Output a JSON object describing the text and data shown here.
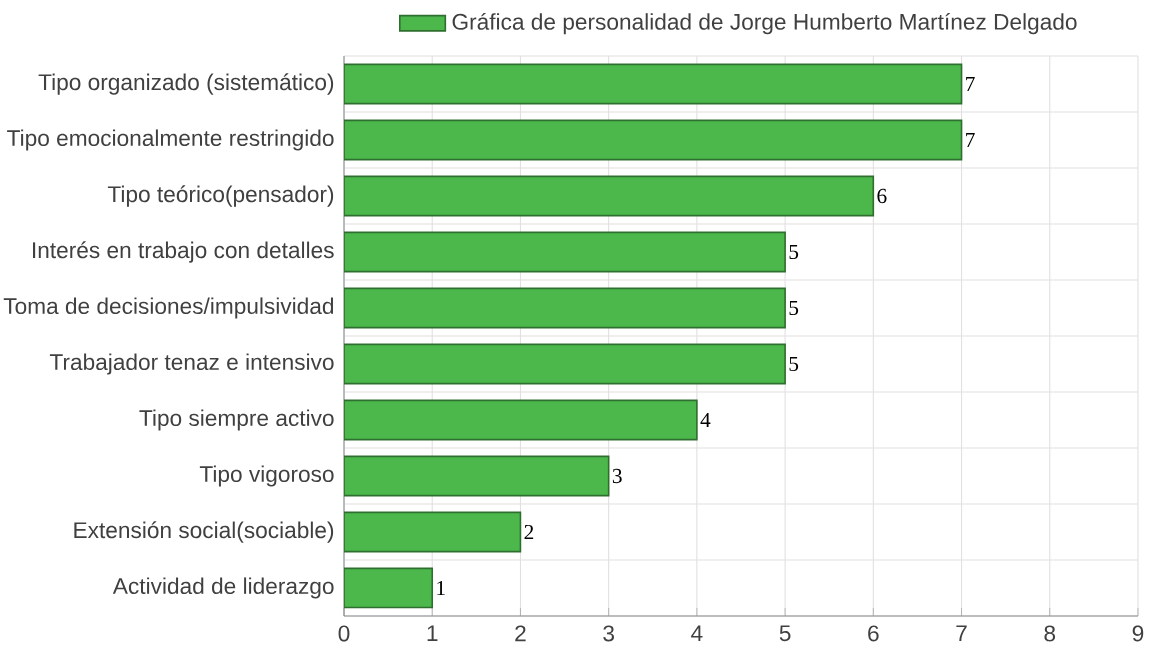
{
  "chart_data": {
    "type": "bar",
    "orientation": "horizontal",
    "categories": [
      "Tipo organizado (sistemático)",
      "Tipo emocionalmente restringido",
      "Tipo teórico(pensador)",
      "Interés en trabajo con detalles",
      "Toma de decisiones/impulsividad",
      "Trabajador tenaz e intensivo",
      "Tipo siempre activo",
      "Tipo vigoroso",
      "Extensión social(sociable)",
      "Actividad de liderazgo"
    ],
    "series": [
      {
        "name": "Gráfica de personalidad de Jorge Humberto Martínez Delgado",
        "color": "#4cb84c",
        "values": [
          7,
          7,
          6,
          5,
          5,
          5,
          4,
          3,
          2,
          1
        ]
      }
    ],
    "xlim": [
      0,
      9
    ],
    "xticks": [
      0,
      1,
      2,
      3,
      4,
      5,
      6,
      7,
      8,
      9
    ],
    "grid": true,
    "legend": "top",
    "data_labels": true
  }
}
